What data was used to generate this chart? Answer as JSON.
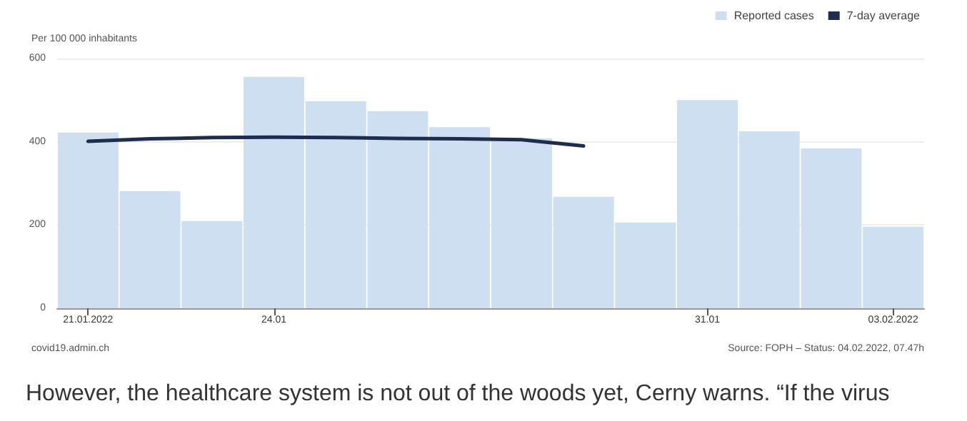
{
  "chart_data": {
    "type": "bar",
    "ylabel": "Per 100 000 inhabitants",
    "categories": [
      "21.01.2022",
      null,
      null,
      "24.01",
      null,
      null,
      null,
      null,
      null,
      null,
      "31.01",
      null,
      null,
      "03.02.2022"
    ],
    "series": [
      {
        "name": "Reported cases",
        "color": "#cddff0",
        "values": [
          422,
          281,
          209,
          556,
          497,
          473,
          435,
          408,
          268,
          206,
          500,
          425,
          384,
          196
        ]
      },
      {
        "name": "7-day average",
        "type": "line",
        "color": "#1f2d4d",
        "values": [
          401,
          407,
          410,
          411,
          410,
          408,
          407,
          405,
          390,
          null,
          null,
          null,
          null,
          null
        ]
      }
    ],
    "ylim": [
      0,
      600
    ],
    "yticks": [
      0,
      200,
      400,
      600
    ],
    "grid": "y",
    "legend": "top right",
    "marker": "none",
    "line_style": "solid",
    "annotations": [
      "covid19.admin.ch",
      "Source: FOPH – Status: 04.02.2022, 07.47h",
      "However, the healthcare system is not out of the woods yet, Cerny warns. “If the virus"
    ]
  }
}
